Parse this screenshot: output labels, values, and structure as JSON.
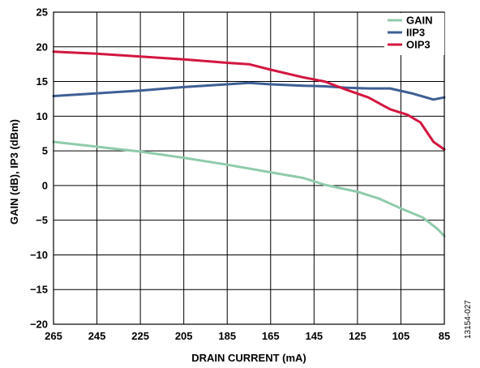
{
  "chart_data": {
    "type": "line",
    "title": "",
    "xlabel": "DRAIN CURRENT (mA)",
    "ylabel": "GAIN (dB), IP3 (dBm)",
    "xlim": [
      265,
      85
    ],
    "ylim": [
      -20,
      25
    ],
    "x_reversed": true,
    "xticks": [
      "265",
      "245",
      "225",
      "205",
      "185",
      "165",
      "145",
      "125",
      "105",
      "85"
    ],
    "yticks": [
      "25",
      "20",
      "15",
      "10",
      "5",
      "0",
      "−5",
      "−10",
      "−15",
      "−20"
    ],
    "grid": true,
    "legend_position": "top-right",
    "series": [
      {
        "name": "GAIN",
        "color": "#8fcbab",
        "x": [
          265,
          245,
          225,
          205,
          185,
          165,
          150,
          140,
          125,
          115,
          105,
          95,
          88,
          85
        ],
        "y": [
          6.3,
          5.6,
          4.9,
          4.0,
          3.0,
          1.9,
          1.1,
          0.1,
          -0.9,
          -1.9,
          -3.3,
          -4.6,
          -6.3,
          -7.3
        ]
      },
      {
        "name": "IIP3",
        "color": "#3e5f94",
        "x": [
          265,
          245,
          225,
          205,
          185,
          175,
          165,
          150,
          140,
          130,
          120,
          110,
          100,
          90,
          85
        ],
        "y": [
          12.9,
          13.3,
          13.7,
          14.2,
          14.6,
          14.8,
          14.6,
          14.4,
          14.3,
          14.1,
          14.0,
          14.0,
          13.3,
          12.4,
          12.7
        ]
      },
      {
        "name": "OIP3",
        "color": "#d3163f",
        "x": [
          265,
          245,
          225,
          205,
          185,
          175,
          165,
          150,
          140,
          130,
          120,
          110,
          102,
          96,
          90,
          85
        ],
        "y": [
          19.3,
          19.0,
          18.6,
          18.2,
          17.7,
          17.5,
          16.7,
          15.6,
          15.0,
          13.8,
          12.7,
          11.0,
          10.2,
          9.1,
          6.3,
          5.2
        ]
      }
    ],
    "figure_id": "13154-027"
  }
}
